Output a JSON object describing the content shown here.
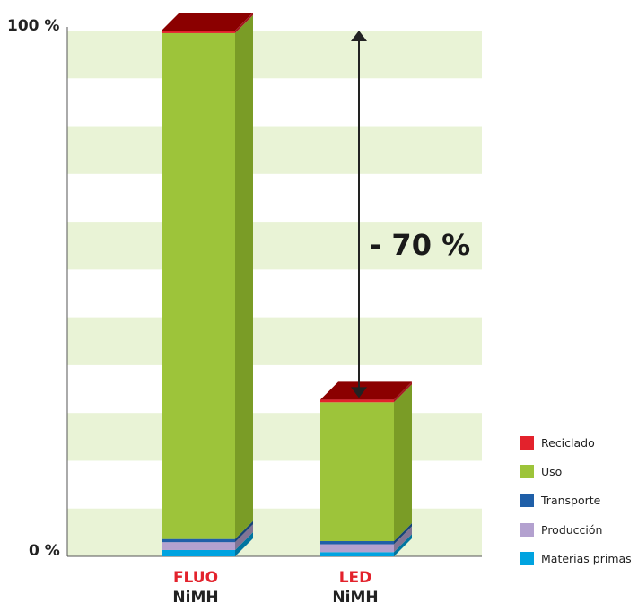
{
  "chart_data": {
    "type": "bar",
    "stacked": true,
    "style": "3d",
    "categories": [
      {
        "line1": "FLUO",
        "line2": "NiMH"
      },
      {
        "line1": "LED",
        "line2": "NiMH"
      }
    ],
    "series": [
      {
        "name": "Materias primas",
        "color": "#00a3e0",
        "values": [
          1.2,
          0.8
        ]
      },
      {
        "name": "Producción",
        "color": "#b3a1cf",
        "values": [
          1.5,
          1.5
        ]
      },
      {
        "name": "Transporte",
        "color": "#1f5fa8",
        "values": [
          0.6,
          0.6
        ]
      },
      {
        "name": "Uso",
        "color": "#9dc43a",
        "values": [
          96.2,
          26.4
        ]
      },
      {
        "name": "Reciclado",
        "color": "#e3222c",
        "values": [
          0.5,
          0.5
        ]
      }
    ],
    "ylim": [
      0,
      100
    ],
    "ytick_labels": {
      "top": "100 %",
      "bottom": "0 %"
    },
    "annotation": "- 70 %",
    "grid": "alternating bands",
    "legend_position": "bottom-right"
  },
  "colors": {
    "band": "#e9f3d6",
    "top_face": "#8b0000",
    "green_side": "#7a9c26"
  }
}
